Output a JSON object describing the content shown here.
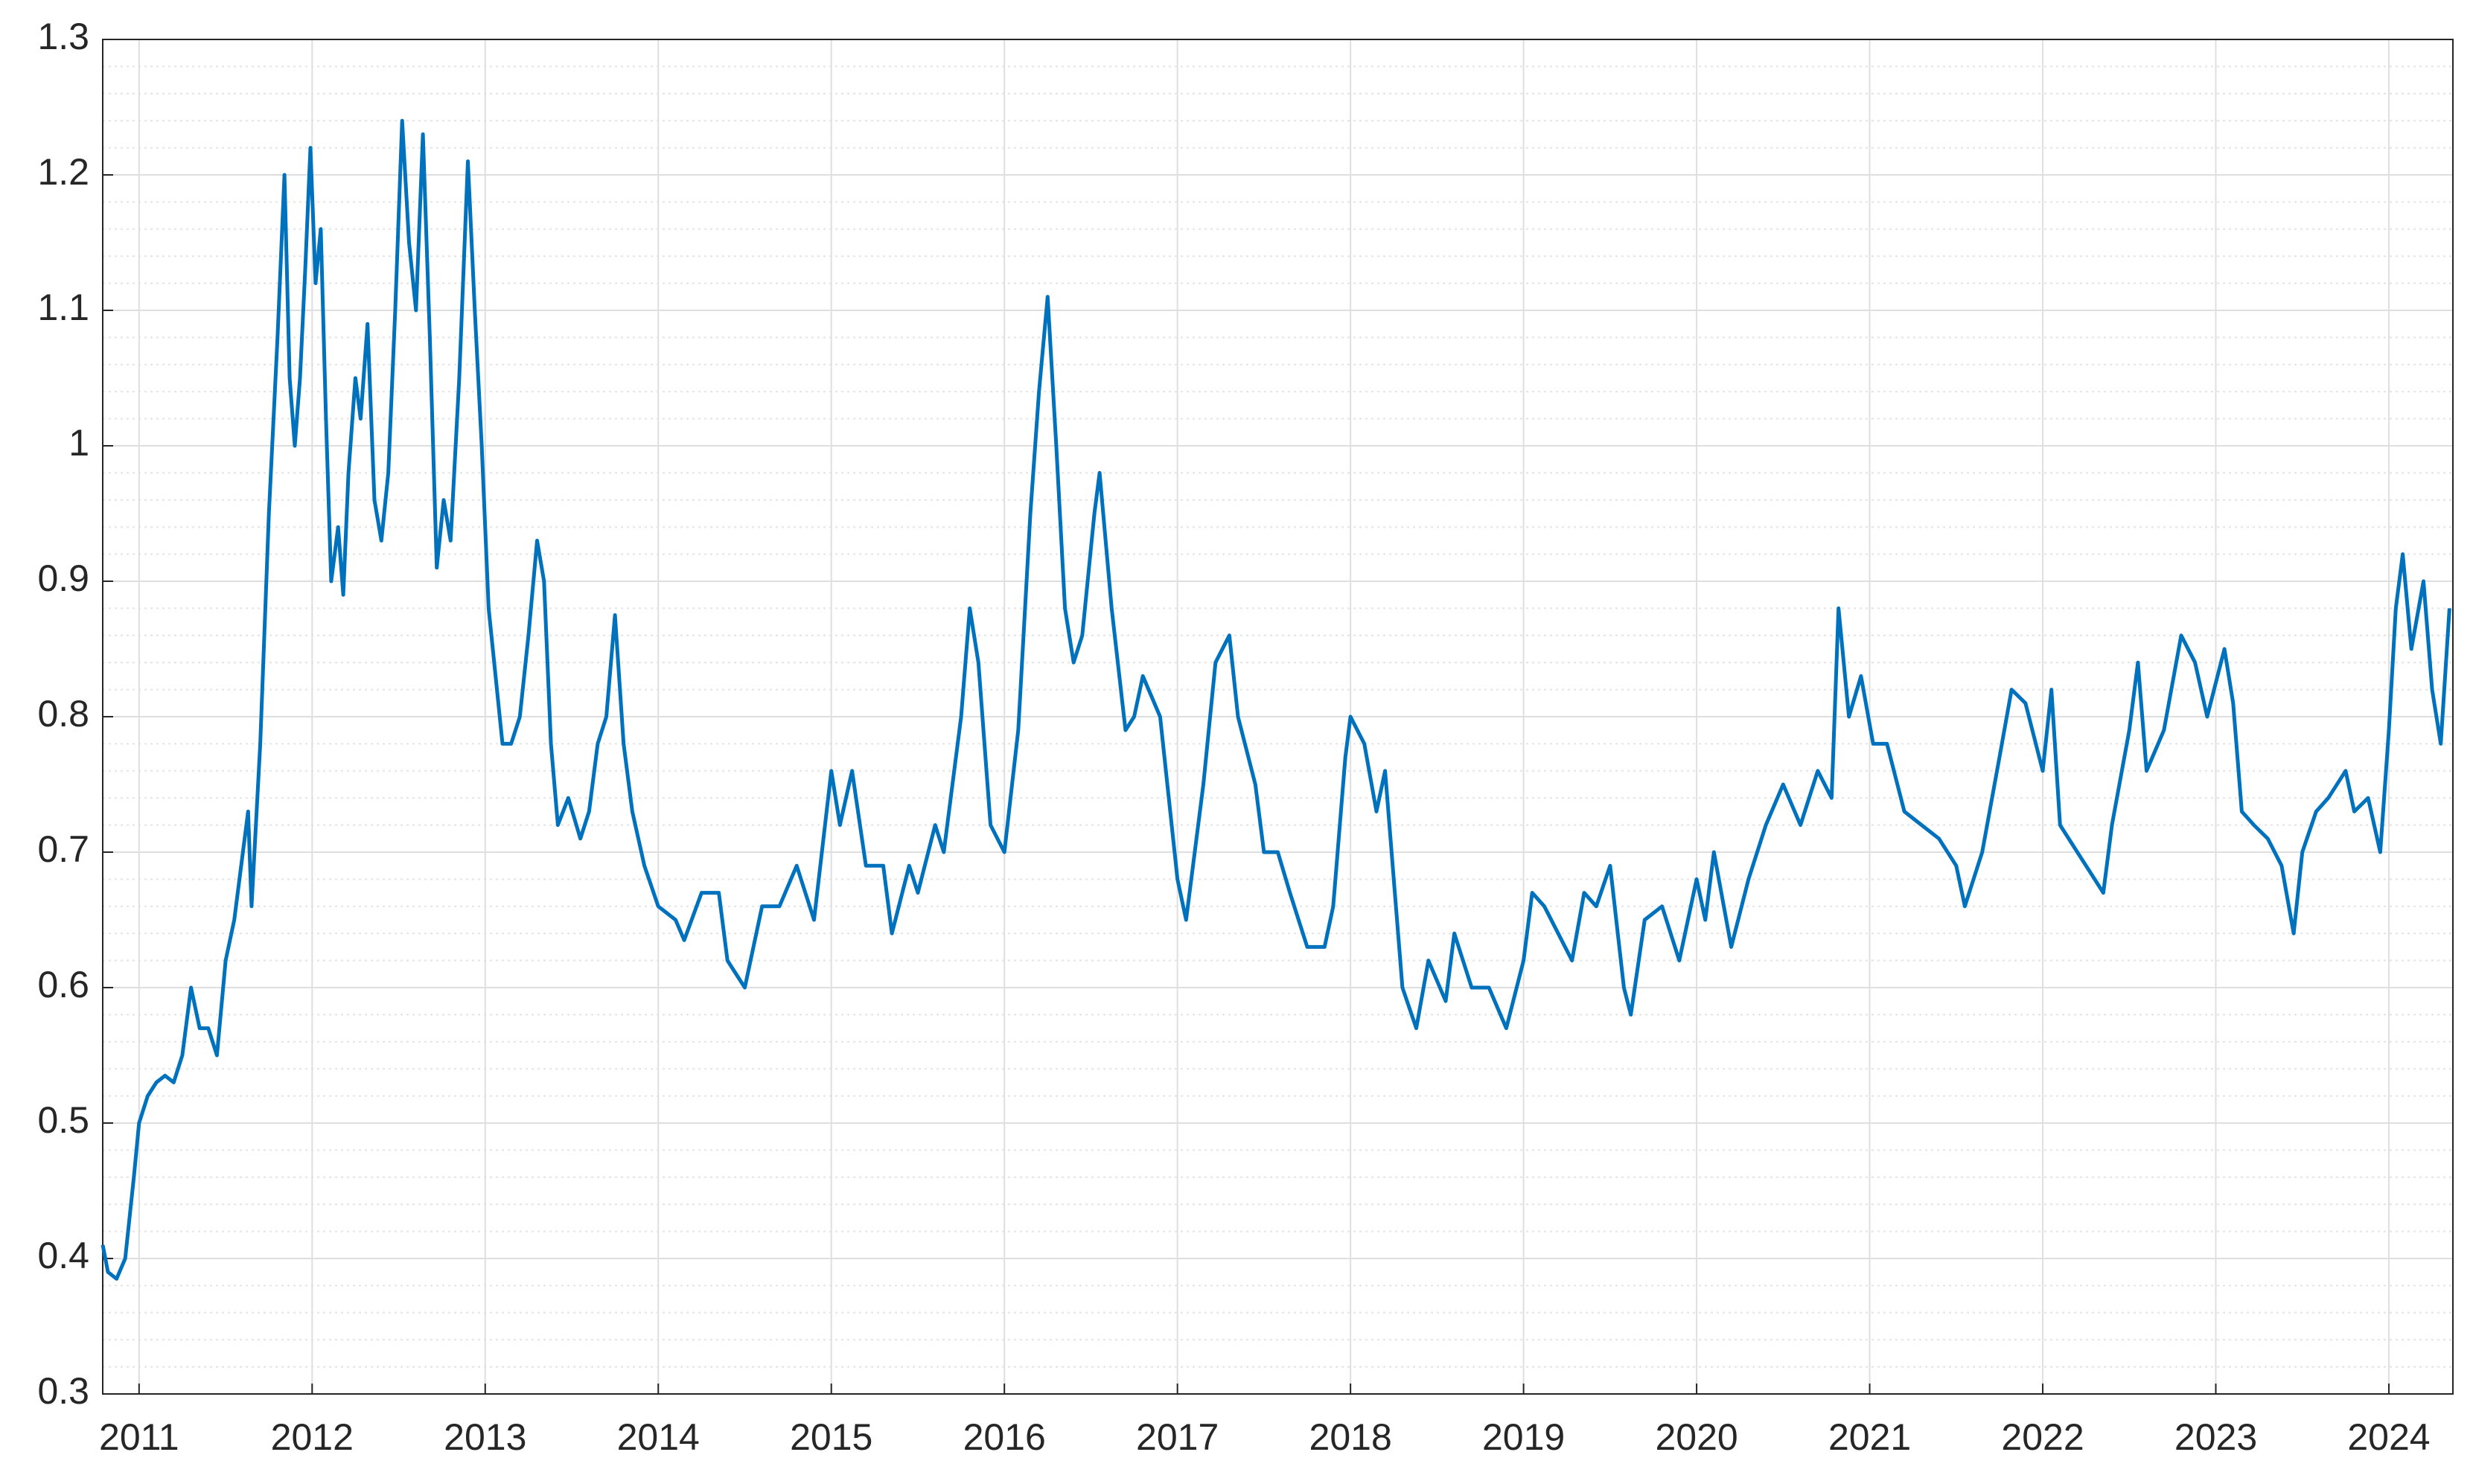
{
  "chart_data": {
    "type": "line",
    "x": [
      2010.79,
      2010.82,
      2010.87,
      2010.92,
      2010.97,
      2011.0,
      2011.05,
      2011.1,
      2011.15,
      2011.2,
      2011.25,
      2011.3,
      2011.35,
      2011.4,
      2011.45,
      2011.5,
      2011.55,
      2011.6,
      2011.63,
      2011.65,
      2011.7,
      2011.75,
      2011.8,
      2011.84,
      2011.87,
      2011.9,
      2011.93,
      2011.96,
      2011.99,
      2012.02,
      2012.05,
      2012.08,
      2012.11,
      2012.15,
      2012.18,
      2012.21,
      2012.25,
      2012.28,
      2012.32,
      2012.36,
      2012.4,
      2012.44,
      2012.48,
      2012.52,
      2012.56,
      2012.6,
      2012.64,
      2012.68,
      2012.72,
      2012.76,
      2012.8,
      2012.85,
      2012.9,
      2012.94,
      2012.98,
      2013.02,
      2013.06,
      2013.1,
      2013.15,
      2013.2,
      2013.25,
      2013.3,
      2013.34,
      2013.38,
      2013.42,
      2013.48,
      2013.55,
      2013.6,
      2013.65,
      2013.7,
      2013.75,
      2013.8,
      2013.85,
      2013.92,
      2014.0,
      2014.1,
      2014.15,
      2014.25,
      2014.35,
      2014.4,
      2014.5,
      2014.6,
      2014.7,
      2014.8,
      2014.9,
      2015.0,
      2015.05,
      2015.12,
      2015.2,
      2015.3,
      2015.35,
      2015.45,
      2015.5,
      2015.6,
      2015.65,
      2015.75,
      2015.8,
      2015.85,
      2015.92,
      2016.0,
      2016.08,
      2016.15,
      2016.2,
      2016.25,
      2016.3,
      2016.35,
      2016.4,
      2016.45,
      2016.52,
      2016.55,
      2016.62,
      2016.7,
      2016.75,
      2016.8,
      2016.9,
      2017.0,
      2017.05,
      2017.15,
      2017.22,
      2017.3,
      2017.35,
      2017.45,
      2017.5,
      2017.58,
      2017.65,
      2017.75,
      2017.85,
      2017.9,
      2017.97,
      2018.0,
      2018.08,
      2018.15,
      2018.2,
      2018.3,
      2018.38,
      2018.45,
      2018.55,
      2018.6,
      2018.7,
      2018.8,
      2018.9,
      2019.0,
      2019.05,
      2019.12,
      2019.2,
      2019.28,
      2019.35,
      2019.42,
      2019.5,
      2019.58,
      2019.62,
      2019.7,
      2019.8,
      2019.9,
      2020.0,
      2020.05,
      2020.1,
      2020.2,
      2020.3,
      2020.4,
      2020.5,
      2020.6,
      2020.7,
      2020.78,
      2020.82,
      2020.88,
      2020.95,
      2021.02,
      2021.1,
      2021.2,
      2021.3,
      2021.4,
      2021.5,
      2021.55,
      2021.65,
      2021.75,
      2021.82,
      2021.9,
      2022.0,
      2022.05,
      2022.1,
      2022.2,
      2022.3,
      2022.35,
      2022.4,
      2022.5,
      2022.55,
      2022.6,
      2022.7,
      2022.8,
      2022.88,
      2022.95,
      2023.05,
      2023.1,
      2023.15,
      2023.22,
      2023.3,
      2023.38,
      2023.45,
      2023.5,
      2023.58,
      2023.65,
      2023.75,
      2023.8,
      2023.88,
      2023.95,
      2024.0,
      2024.04,
      2024.08,
      2024.13,
      2024.2,
      2024.25,
      2024.3,
      2024.35
    ],
    "series": [
      {
        "color": "#0072bd",
        "values": [
          0.41,
          0.39,
          0.385,
          0.4,
          0.46,
          0.5,
          0.52,
          0.53,
          0.535,
          0.53,
          0.55,
          0.6,
          0.57,
          0.57,
          0.55,
          0.62,
          0.65,
          0.7,
          0.73,
          0.66,
          0.78,
          0.95,
          1.08,
          1.2,
          1.05,
          1.0,
          1.05,
          1.13,
          1.22,
          1.12,
          1.16,
          1.02,
          0.9,
          0.94,
          0.89,
          0.98,
          1.05,
          1.02,
          1.09,
          0.96,
          0.93,
          0.98,
          1.1,
          1.24,
          1.15,
          1.1,
          1.23,
          1.08,
          0.91,
          0.96,
          0.93,
          1.05,
          1.21,
          1.1,
          1.0,
          0.88,
          0.83,
          0.78,
          0.78,
          0.8,
          0.86,
          0.93,
          0.9,
          0.78,
          0.72,
          0.74,
          0.71,
          0.73,
          0.78,
          0.8,
          0.875,
          0.78,
          0.73,
          0.69,
          0.66,
          0.65,
          0.635,
          0.67,
          0.67,
          0.62,
          0.6,
          0.66,
          0.66,
          0.69,
          0.65,
          0.76,
          0.72,
          0.76,
          0.69,
          0.69,
          0.64,
          0.69,
          0.67,
          0.72,
          0.7,
          0.8,
          0.88,
          0.84,
          0.72,
          0.7,
          0.79,
          0.95,
          1.04,
          1.11,
          1.0,
          0.88,
          0.84,
          0.86,
          0.95,
          0.98,
          0.88,
          0.79,
          0.8,
          0.83,
          0.8,
          0.68,
          0.65,
          0.75,
          0.84,
          0.86,
          0.8,
          0.75,
          0.7,
          0.7,
          0.67,
          0.63,
          0.63,
          0.66,
          0.77,
          0.8,
          0.78,
          0.73,
          0.76,
          0.6,
          0.57,
          0.62,
          0.59,
          0.64,
          0.6,
          0.6,
          0.57,
          0.62,
          0.67,
          0.66,
          0.64,
          0.62,
          0.67,
          0.66,
          0.69,
          0.6,
          0.58,
          0.65,
          0.66,
          0.62,
          0.68,
          0.65,
          0.7,
          0.63,
          0.68,
          0.72,
          0.75,
          0.72,
          0.76,
          0.74,
          0.88,
          0.8,
          0.83,
          0.78,
          0.78,
          0.73,
          0.72,
          0.71,
          0.69,
          0.66,
          0.7,
          0.77,
          0.82,
          0.81,
          0.76,
          0.82,
          0.72,
          0.7,
          0.68,
          0.67,
          0.72,
          0.79,
          0.84,
          0.76,
          0.79,
          0.86,
          0.84,
          0.8,
          0.85,
          0.81,
          0.73,
          0.72,
          0.71,
          0.69,
          0.64,
          0.7,
          0.73,
          0.74,
          0.76,
          0.73,
          0.74,
          0.7,
          0.79,
          0.88,
          0.92,
          0.85,
          0.9,
          0.82,
          0.78,
          0.88
        ]
      }
    ],
    "xlim": [
      2010.79,
      2024.37
    ],
    "xticks": [
      2011,
      2012,
      2013,
      2014,
      2015,
      2016,
      2017,
      2018,
      2019,
      2020,
      2021,
      2022,
      2023,
      2024
    ],
    "ylim": [
      0.3,
      1.3
    ],
    "yticks": [
      0.3,
      0.4,
      0.5,
      0.6,
      0.7,
      0.8,
      0.9,
      1,
      1.1,
      1.2,
      1.3
    ],
    "yminorticks": [
      0.32,
      0.34,
      0.36,
      0.38,
      0.42,
      0.44,
      0.46,
      0.48,
      0.52,
      0.54,
      0.56,
      0.58,
      0.62,
      0.64,
      0.66,
      0.68,
      0.72,
      0.74,
      0.76,
      0.78,
      0.82,
      0.84,
      0.86,
      0.88,
      0.92,
      0.94,
      0.96,
      0.98,
      1.02,
      1.04,
      1.06,
      1.08,
      1.12,
      1.14,
      1.16,
      1.18,
      1.22,
      1.24,
      1.26,
      1.28
    ],
    "grid": true
  }
}
